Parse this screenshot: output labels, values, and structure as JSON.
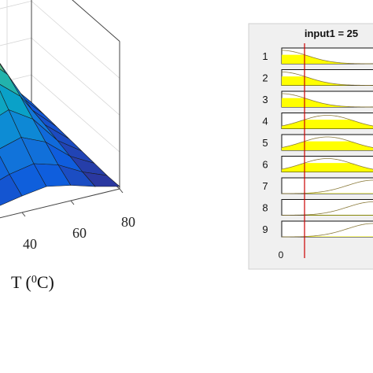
{
  "chart_data": [
    {
      "type": "surface",
      "xlabel": "T (0C)",
      "x_ticks": [
        "40",
        "60",
        "80"
      ],
      "grid": true,
      "colormap": "parula",
      "surface_grid": {
        "x": [
          20,
          30,
          40,
          50,
          60,
          70,
          80
        ],
        "rows": 8,
        "z_relative": [
          [
            0.3,
            0.55,
            0.8,
            0.92,
            0.7,
            0.3,
            0.08
          ],
          [
            0.28,
            0.52,
            0.76,
            0.88,
            0.66,
            0.28,
            0.07
          ],
          [
            0.25,
            0.47,
            0.68,
            0.8,
            0.6,
            0.25,
            0.06
          ],
          [
            0.21,
            0.4,
            0.58,
            0.68,
            0.51,
            0.22,
            0.05
          ],
          [
            0.17,
            0.32,
            0.46,
            0.54,
            0.41,
            0.18,
            0.04
          ],
          [
            0.13,
            0.24,
            0.34,
            0.4,
            0.31,
            0.14,
            0.03
          ],
          [
            0.09,
            0.16,
            0.23,
            0.27,
            0.21,
            0.1,
            0.02
          ],
          [
            0.06,
            0.1,
            0.14,
            0.17,
            0.13,
            0.07,
            0.02
          ]
        ]
      }
    },
    {
      "type": "rule-viewer",
      "title": "input1 = 25",
      "input_value": 25,
      "x_min_label": "0",
      "x_range": [
        0,
        100
      ],
      "marker_color": "#cc0000",
      "fill_color": "#ffff00",
      "panel_bg": "#f0f0f0",
      "rules": [
        {
          "label": "1",
          "mf": "low",
          "center": 0,
          "width": 28
        },
        {
          "label": "2",
          "mf": "low",
          "center": 0,
          "width": 28
        },
        {
          "label": "3",
          "mf": "low",
          "center": 0,
          "width": 28
        },
        {
          "label": "4",
          "mf": "mid",
          "center": 50,
          "width": 28
        },
        {
          "label": "5",
          "mf": "mid",
          "center": 50,
          "width": 28
        },
        {
          "label": "6",
          "mf": "mid",
          "center": 50,
          "width": 28
        },
        {
          "label": "7",
          "mf": "high",
          "center": 100,
          "width": 28
        },
        {
          "label": "8",
          "mf": "high",
          "center": 100,
          "width": 28
        },
        {
          "label": "9",
          "mf": "high",
          "center": 100,
          "width": 28
        }
      ]
    }
  ]
}
